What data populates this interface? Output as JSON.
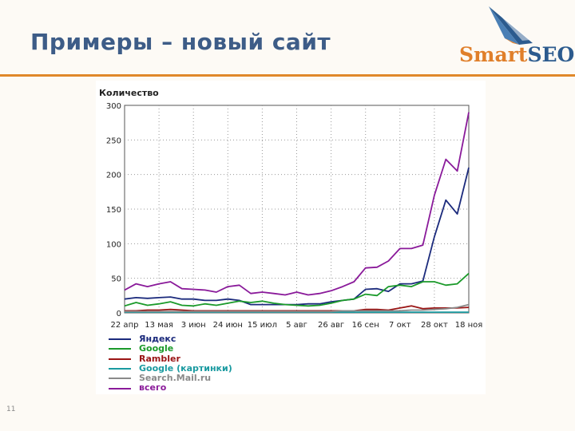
{
  "slide": {
    "title": "Примеры – новый сайт",
    "page_number": "11",
    "logo": {
      "part1": "Smart",
      "part2": "SEO"
    }
  },
  "colors": {
    "title": "#3d5c87",
    "rule": "#e0882a",
    "logo_orange": "#e07f2a",
    "logo_blue": "#2c5b8e"
  },
  "chart_data": {
    "type": "line",
    "ylabel": "Количество",
    "ylim": [
      0,
      300
    ],
    "yticks": [
      0,
      50,
      100,
      150,
      200,
      250,
      300
    ],
    "xtick_labels": [
      "22 апр",
      "13 мая",
      "3 июн",
      "24 июн",
      "15 июл",
      "5 авг",
      "26 авг",
      "16 сен",
      "7 окт",
      "28 окт",
      "18 ноя"
    ],
    "xtick_positions": [
      0,
      3,
      6,
      9,
      12,
      15,
      18,
      21,
      24,
      27,
      30
    ],
    "x_count": 31,
    "grid": true,
    "legend_position": "bottom-left",
    "series": [
      {
        "name": "Яндекс",
        "color": "#1b2a7c",
        "values": [
          20,
          22,
          21,
          22,
          23,
          20,
          20,
          18,
          18,
          20,
          18,
          12,
          12,
          12,
          12,
          12,
          13,
          13,
          16,
          18,
          20,
          34,
          35,
          31,
          42,
          42,
          46,
          110,
          163,
          143,
          210
        ]
      },
      {
        "name": "Google",
        "color": "#1b9a2a",
        "values": [
          10,
          15,
          11,
          13,
          16,
          11,
          10,
          13,
          11,
          14,
          17,
          15,
          17,
          14,
          12,
          11,
          10,
          11,
          14,
          18,
          20,
          27,
          25,
          38,
          40,
          38,
          45,
          45,
          40,
          42,
          57
        ]
      },
      {
        "name": "Rambler",
        "color": "#9a1515",
        "values": [
          3,
          3,
          4,
          4,
          5,
          4,
          3,
          3,
          3,
          3,
          3,
          3,
          3,
          3,
          3,
          3,
          3,
          3,
          3,
          3,
          3,
          5,
          5,
          4,
          7,
          10,
          6,
          7,
          7,
          7,
          8
        ]
      },
      {
        "name": "Google (картинки)",
        "color": "#1a9aa0",
        "values": [
          1,
          1,
          1,
          1,
          1,
          1,
          1,
          1,
          1,
          1,
          1,
          1,
          1,
          1,
          1,
          1,
          1,
          1,
          1,
          1,
          1,
          1,
          1,
          1,
          1,
          1,
          1,
          1,
          1,
          1,
          1
        ]
      },
      {
        "name": "Search.Mail.ru",
        "color": "#8a8a8a",
        "values": [
          2,
          2,
          2,
          2,
          2,
          2,
          2,
          2,
          2,
          2,
          2,
          2,
          2,
          2,
          2,
          2,
          2,
          2,
          2,
          3,
          3,
          3,
          3,
          3,
          3,
          4,
          4,
          5,
          6,
          8,
          12
        ]
      },
      {
        "name": "всего",
        "color": "#8a1a9a",
        "values": [
          33,
          42,
          38,
          42,
          45,
          35,
          34,
          33,
          30,
          38,
          40,
          28,
          30,
          28,
          26,
          30,
          26,
          28,
          32,
          38,
          45,
          65,
          66,
          75,
          93,
          93,
          98,
          170,
          222,
          205,
          290
        ]
      }
    ]
  }
}
